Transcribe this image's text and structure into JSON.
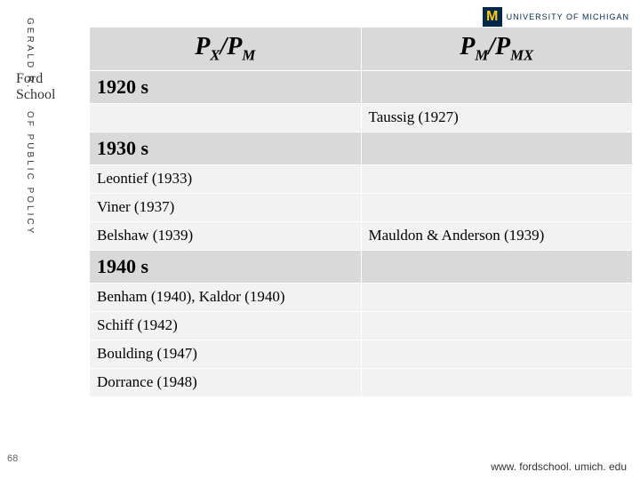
{
  "sidebar": {
    "vertical1": "GERALD R.",
    "vertical2": "OF PUBLIC POLICY",
    "ford": "Ford",
    "school": "School"
  },
  "logo": {
    "m": "M",
    "text": "UNIVERSITY OF MICHIGAN"
  },
  "page_number": "68",
  "footer_url": "www. fordschool. umich. edu",
  "table": {
    "header": {
      "col1_html": "P<span class='sub'>X</span>/P<span class='sub'>M</span>",
      "col2_html": "P<span class='sub'>M</span>/P<span class='sub'>MX</span>"
    },
    "rows": [
      {
        "type": "decade",
        "c1": "1920 s",
        "c2": ""
      },
      {
        "type": "data",
        "c1": "",
        "c2": "Taussig (1927)"
      },
      {
        "type": "decade",
        "c1": "1930 s",
        "c2": ""
      },
      {
        "type": "data",
        "c1": "Leontief (1933)",
        "c2": ""
      },
      {
        "type": "data",
        "c1": "Viner (1937)",
        "c2": ""
      },
      {
        "type": "data",
        "c1": "Belshaw (1939)",
        "c2": "Mauldon & Anderson (1939)"
      },
      {
        "type": "decade",
        "c1": "1940 s",
        "c2": ""
      },
      {
        "type": "data",
        "c1": "Benham (1940), Kaldor (1940)",
        "c2": ""
      },
      {
        "type": "data",
        "c1": "Schiff (1942)",
        "c2": ""
      },
      {
        "type": "data",
        "c1": "Boulding (1947)",
        "c2": ""
      },
      {
        "type": "data",
        "c1": "Dorrance (1948)",
        "c2": ""
      }
    ]
  }
}
